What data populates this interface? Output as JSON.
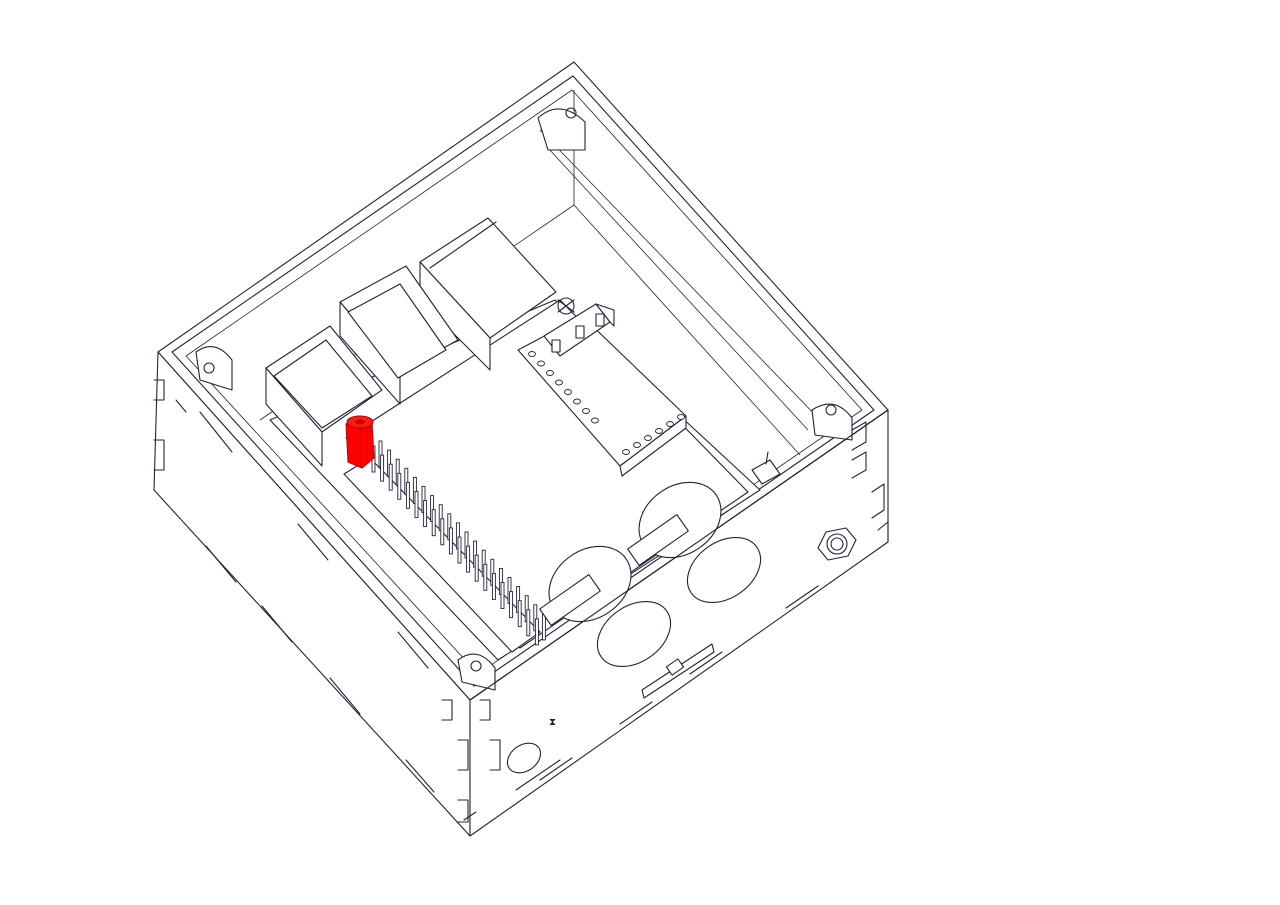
{
  "viewport": {
    "background": "#ffffff",
    "line_color": "#20243a",
    "highlight_color": "#ff0000"
  },
  "model": {
    "highlighted_part": "standoff",
    "parts": [
      "enclosure-box",
      "single-board-computer",
      "gpio-header",
      "usb-ports",
      "ethernet-port",
      "audio-board",
      "audio-jack",
      "knobs",
      "panel-holes",
      "button-nut",
      "switch"
    ]
  }
}
